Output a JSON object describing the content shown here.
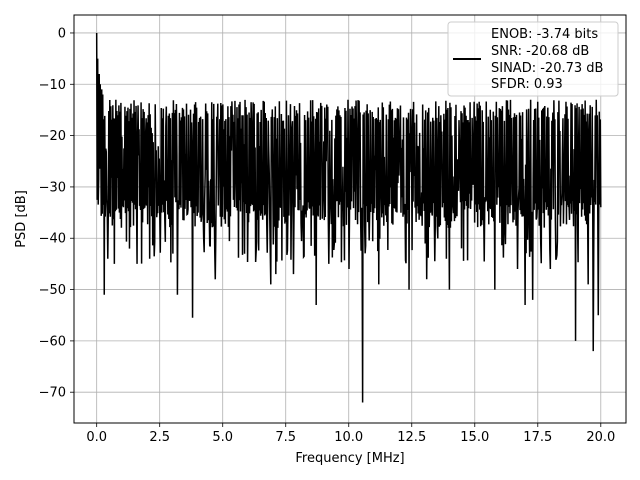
{
  "chart_data": {
    "type": "line",
    "title": "",
    "xlabel": "Frequency [MHz]",
    "ylabel": "PSD [dB]",
    "xlim": [
      -0.9,
      21.0
    ],
    "ylim": [
      -76.0,
      3.5
    ],
    "xticks": [
      0.0,
      2.5,
      5.0,
      7.5,
      10.0,
      12.5,
      15.0,
      17.5,
      20.0
    ],
    "xtick_labels": [
      "0.0",
      "2.5",
      "5.0",
      "7.5",
      "10.0",
      "12.5",
      "15.0",
      "17.5",
      "20.0"
    ],
    "yticks": [
      0,
      -10,
      -20,
      -30,
      -40,
      -50,
      -60,
      -70
    ],
    "ytick_labels": [
      "0",
      "−10",
      "−20",
      "−30",
      "−40",
      "−50",
      "−60",
      "−70"
    ],
    "grid": true,
    "legend_position": "top-right",
    "legend": {
      "line1": "ENOB: -3.74 bits",
      "line2": "SNR: -20.68 dB",
      "line3": "SINAD: -20.73 dB",
      "line4": "SFDR: 0.93"
    },
    "series": [
      {
        "color": "#000000",
        "x_start": 0.0,
        "x_end": 20.0,
        "points_count": 1000,
        "noise_band_upper": -13,
        "noise_band_lower": -38,
        "dc_peak": [
          0.0,
          0.0
        ],
        "initial_spikes": [
          [
            0.05,
            -5
          ],
          [
            0.1,
            -8
          ],
          [
            0.15,
            -10
          ],
          [
            0.2,
            -11
          ],
          [
            0.25,
            -12
          ]
        ],
        "notable_dips": [
          [
            0.3,
            -51
          ],
          [
            0.45,
            -44
          ],
          [
            0.7,
            -45
          ],
          [
            1.6,
            -45
          ],
          [
            2.1,
            -44
          ],
          [
            3.2,
            -51
          ],
          [
            3.8,
            -55.5
          ],
          [
            4.7,
            -48
          ],
          [
            6.9,
            -49
          ],
          [
            7.1,
            -47
          ],
          [
            7.8,
            -47
          ],
          [
            8.7,
            -53
          ],
          [
            9.2,
            -45
          ],
          [
            10.0,
            -46
          ],
          [
            10.55,
            -72
          ],
          [
            11.2,
            -49
          ],
          [
            12.4,
            -50
          ],
          [
            13.1,
            -48
          ],
          [
            14.0,
            -50
          ],
          [
            15.8,
            -50
          ],
          [
            16.7,
            -46
          ],
          [
            17.0,
            -53
          ],
          [
            17.3,
            -52
          ],
          [
            18.0,
            -46
          ],
          [
            19.0,
            -60
          ],
          [
            19.5,
            -49
          ],
          [
            19.7,
            -62
          ],
          [
            19.9,
            -55
          ]
        ]
      }
    ]
  }
}
